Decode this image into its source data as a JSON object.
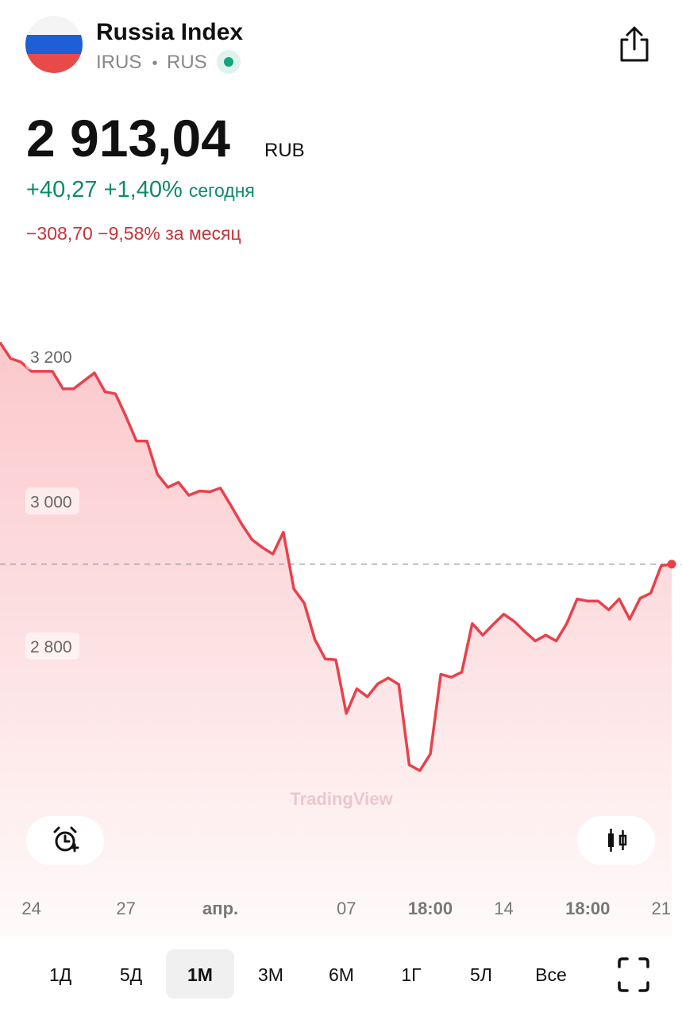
{
  "header": {
    "title": "Russia Index",
    "ticker": "IRUS",
    "separator": "•",
    "exchange": "RUS"
  },
  "quote": {
    "price": "2 913,04",
    "currency": "RUB",
    "day_change": "+40,27",
    "day_change_pct": "+1,40%",
    "day_label": "сегодня",
    "month_change": "−308,70",
    "month_change_pct": "−9,58%",
    "month_label": "за месяц"
  },
  "chart_data": {
    "type": "line",
    "watermark": "TradingView",
    "x": [
      0,
      1,
      2,
      3,
      4,
      5,
      6,
      7,
      8,
      9,
      10,
      11,
      12,
      13,
      14,
      15,
      16,
      17,
      18,
      19,
      20,
      21,
      22,
      23,
      24,
      25,
      26,
      27,
      28,
      29,
      30,
      31,
      32,
      33,
      34,
      35,
      36,
      37,
      38,
      39,
      40,
      41,
      42,
      43,
      44,
      45,
      46,
      47,
      48,
      49,
      50,
      51,
      52,
      53,
      54,
      55,
      56,
      57,
      58,
      59,
      60,
      61,
      62,
      63,
      64
    ],
    "series": [
      {
        "name": "IRUS",
        "color": "#e8414b",
        "values": [
          3219,
          3197,
          3192,
          3179,
          3179,
          3179,
          3155,
          3155,
          3166,
          3177,
          3151,
          3148,
          3117,
          3083,
          3083,
          3037,
          3019,
          3026,
          3008,
          3014,
          3013,
          3018,
          2994,
          2969,
          2947,
          2936,
          2927,
          2957,
          2879,
          2859,
          2809,
          2782,
          2781,
          2707,
          2741,
          2730,
          2748,
          2756,
          2747,
          2636,
          2628,
          2651,
          2761,
          2757,
          2764,
          2831,
          2815,
          2830,
          2844,
          2834,
          2820,
          2807,
          2815,
          2807,
          2831,
          2865,
          2862,
          2862,
          2850,
          2865,
          2837,
          2866,
          2873,
          2911,
          2913
        ]
      }
    ],
    "reference_line": 2913.04,
    "xlim": [
      0,
      64
    ],
    "xticks": [
      {
        "value": 3,
        "label": "24"
      },
      {
        "value": 12,
        "label": "27"
      },
      {
        "value": 21,
        "label": "апр."
      },
      {
        "value": 33,
        "label": "07"
      },
      {
        "value": 41,
        "label": "18:00"
      },
      {
        "value": 48,
        "label": "14"
      },
      {
        "value": 56,
        "label": "18:00"
      },
      {
        "value": 63,
        "label": "21"
      }
    ],
    "ylim": [
      2560,
      3260
    ],
    "yticks": [
      {
        "value": 2800,
        "label": "2 800"
      },
      {
        "value": 3000,
        "label": "3 000"
      },
      {
        "value": 3200,
        "label": "3 200"
      }
    ]
  },
  "ranges": {
    "options": [
      "1Д",
      "5Д",
      "1М",
      "3М",
      "6М",
      "1Г",
      "5Л",
      "Все"
    ],
    "selected": 2
  }
}
